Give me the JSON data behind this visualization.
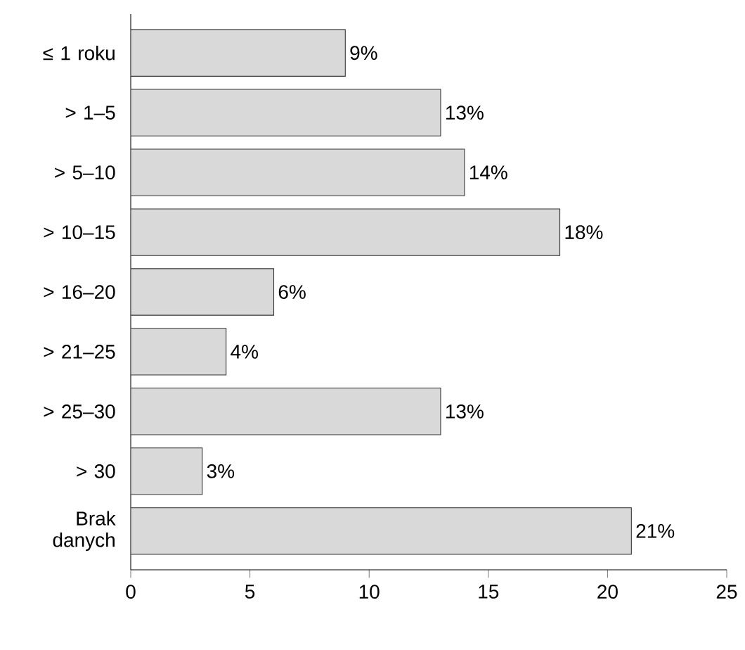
{
  "chart_data": {
    "type": "bar",
    "orientation": "horizontal",
    "categories": [
      "≤ 1 roku",
      "> 1–5",
      "> 5–10",
      "> 10–15",
      "> 16–20",
      "> 21–25",
      "> 25–30",
      "> 30",
      "Brak danych"
    ],
    "values": [
      9,
      13,
      14,
      18,
      6,
      4,
      13,
      3,
      21
    ],
    "value_labels": [
      "9%",
      "13%",
      "14%",
      "18%",
      "6%",
      "4%",
      "13%",
      "3%",
      "21%"
    ],
    "color": "#d9d9d9",
    "xlim": [
      0,
      25
    ],
    "xticks": [
      0,
      5,
      10,
      15,
      20,
      25
    ],
    "grid": false
  }
}
